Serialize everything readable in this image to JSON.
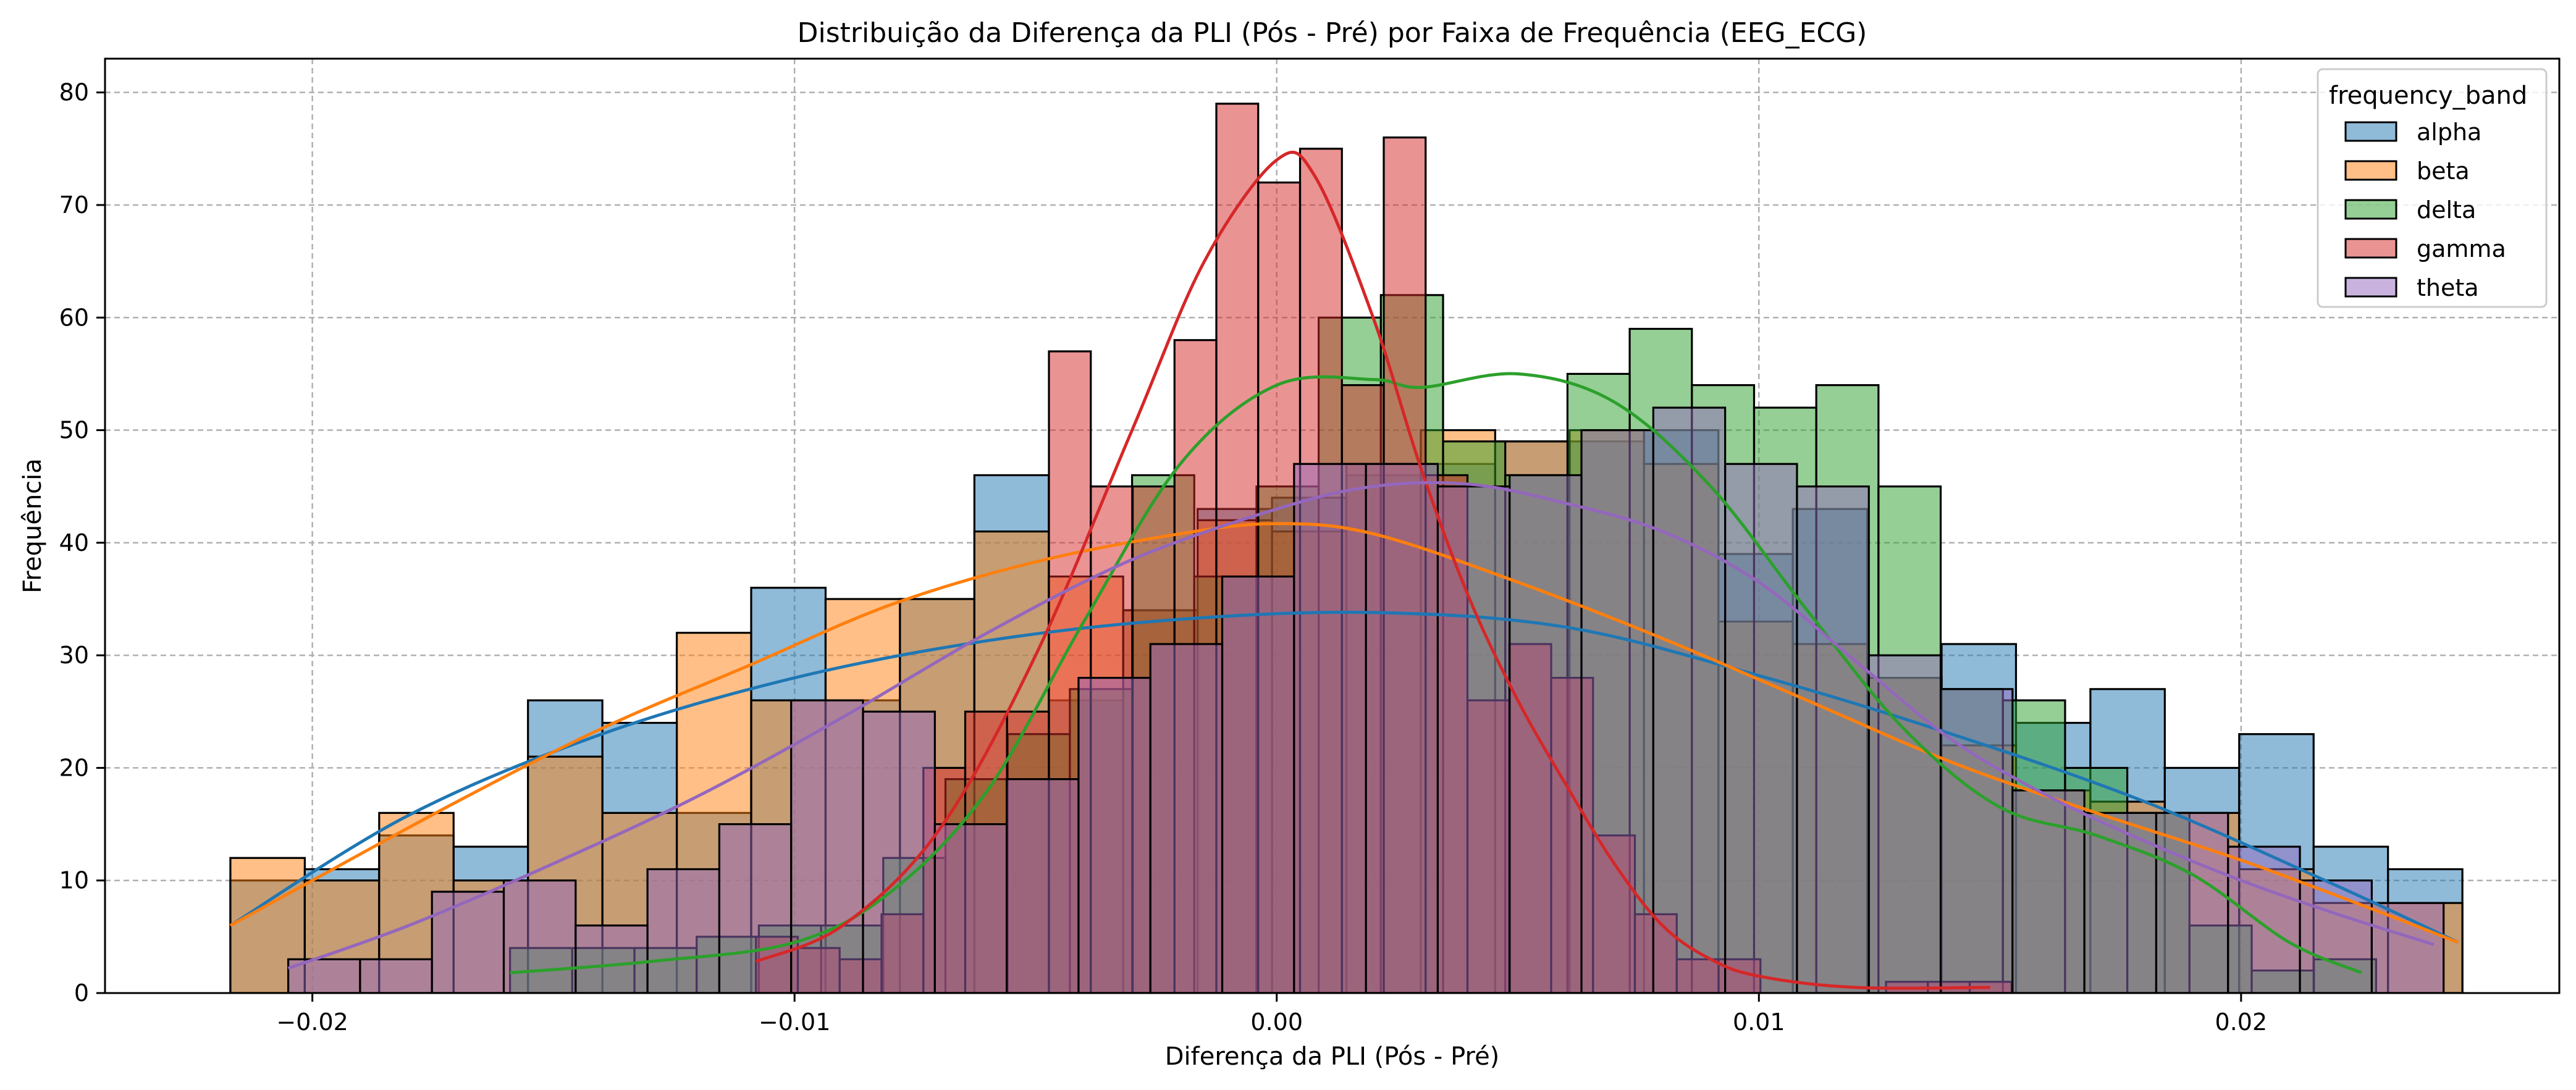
{
  "chart_data": {
    "type": "histogram",
    "title": "Distribuição da Diferença da PLI (Pós - Pré) por Faixa de Frequência (EEG_ECG)",
    "xlabel": "Diferença da PLI (Pós - Pré)",
    "ylabel": "Frequência",
    "xlim": [
      -0.0243,
      0.0266
    ],
    "ylim": [
      0,
      83
    ],
    "xticks": [
      -0.02,
      -0.01,
      0.0,
      0.01,
      0.02
    ],
    "xtick_labels": [
      "−0.02",
      "−0.01",
      "0.00",
      "0.01",
      "0.02"
    ],
    "yticks": [
      0,
      10,
      20,
      30,
      40,
      50,
      60,
      70,
      80
    ],
    "ytick_labels": [
      "0",
      "10",
      "20",
      "30",
      "40",
      "50",
      "60",
      "70",
      "80"
    ],
    "grid": true,
    "legend": {
      "title": "frequency_band",
      "placement": "top-right"
    },
    "series": [
      {
        "name": "alpha",
        "color": "#1f77b4",
        "bins": {
          "start": -0.0217,
          "width": 0.001543,
          "count": 30
        },
        "counts": [
          10,
          11,
          14,
          13,
          26,
          24,
          16,
          36,
          26,
          35,
          46,
          26,
          34,
          43,
          44,
          46,
          47,
          49,
          49,
          50,
          39,
          43,
          28,
          31,
          24,
          27,
          20,
          23,
          13,
          11
        ],
        "kde": [
          [
            -0.0217,
            6.0
          ],
          [
            -0.018,
            15.8
          ],
          [
            -0.014,
            23.0
          ],
          [
            -0.01,
            28.0
          ],
          [
            -0.006,
            31.3
          ],
          [
            -0.002,
            33.2
          ],
          [
            0.002,
            33.8
          ],
          [
            0.006,
            32.5
          ],
          [
            0.01,
            28.2
          ],
          [
            0.014,
            23.0
          ],
          [
            0.018,
            17.0
          ],
          [
            0.022,
            9.5
          ],
          [
            0.0245,
            4.5
          ]
        ]
      },
      {
        "name": "beta",
        "color": "#ff7f0e",
        "bins": {
          "start": -0.0217,
          "width": 0.001543,
          "count": 30
        },
        "counts": [
          12,
          10,
          16,
          10,
          21,
          16,
          32,
          26,
          35,
          35,
          41,
          37,
          34,
          42,
          41,
          47,
          50,
          49,
          50,
          47,
          33,
          31,
          28,
          22,
          18,
          17,
          16,
          11,
          8,
          8
        ],
        "kde": [
          [
            -0.0217,
            6.0
          ],
          [
            -0.02,
            10.0
          ],
          [
            -0.017,
            17.0
          ],
          [
            -0.014,
            23.5
          ],
          [
            -0.011,
            29.0
          ],
          [
            -0.008,
            34.5
          ],
          [
            -0.005,
            38.3
          ],
          [
            -0.002,
            40.8
          ],
          [
            0.0,
            41.7
          ],
          [
            0.002,
            40.8
          ],
          [
            0.005,
            36.5
          ],
          [
            0.008,
            31.5
          ],
          [
            0.011,
            26.0
          ],
          [
            0.014,
            20.5
          ],
          [
            0.017,
            16.0
          ],
          [
            0.02,
            11.8
          ],
          [
            0.023,
            7.0
          ],
          [
            0.0245,
            4.5
          ]
        ]
      },
      {
        "name": "delta",
        "color": "#2ca02c",
        "bins": {
          "start": -0.0159,
          "width": 0.00129,
          "count": 30
        },
        "counts": [
          4,
          4,
          4,
          5,
          6,
          6,
          12,
          19,
          23,
          27,
          46,
          37,
          45,
          60,
          62,
          49,
          46,
          55,
          59,
          54,
          52,
          54,
          45,
          27,
          26,
          20,
          16,
          6,
          2,
          3
        ],
        "kde": [
          [
            -0.0159,
            1.8
          ],
          [
            -0.013,
            2.8
          ],
          [
            -0.01,
            4.5
          ],
          [
            -0.008,
            9.0
          ],
          [
            -0.006,
            18.0
          ],
          [
            -0.004,
            33.0
          ],
          [
            -0.002,
            47.0
          ],
          [
            0.0,
            54.0
          ],
          [
            0.002,
            54.5
          ],
          [
            0.003,
            53.8
          ],
          [
            0.005,
            55.0
          ],
          [
            0.007,
            52.5
          ],
          [
            0.009,
            45.0
          ],
          [
            0.011,
            34.0
          ],
          [
            0.013,
            23.5
          ],
          [
            0.015,
            16.5
          ],
          [
            0.017,
            14.0
          ],
          [
            0.019,
            10.5
          ],
          [
            0.021,
            4.5
          ],
          [
            0.0225,
            1.8
          ]
        ]
      },
      {
        "name": "gamma",
        "color": "#d62728",
        "bins": {
          "start": -0.0108,
          "width": 0.000868,
          "count": 30
        },
        "counts": [
          5,
          4,
          3,
          7,
          20,
          25,
          25,
          57,
          45,
          45,
          58,
          79,
          72,
          75,
          54,
          76,
          46,
          26,
          31,
          28,
          14,
          7,
          3,
          3,
          0,
          0,
          0,
          1,
          1,
          1
        ],
        "kde": [
          [
            -0.0108,
            2.8
          ],
          [
            -0.009,
            6.0
          ],
          [
            -0.007,
            14.5
          ],
          [
            -0.005,
            30.0
          ],
          [
            -0.003,
            50.0
          ],
          [
            -0.0015,
            65.0
          ],
          [
            0.0,
            74.0
          ],
          [
            0.0008,
            72.5
          ],
          [
            0.002,
            60.0
          ],
          [
            0.003,
            46.5
          ],
          [
            0.004,
            35.0
          ],
          [
            0.005,
            26.0
          ],
          [
            0.006,
            18.5
          ],
          [
            0.007,
            11.5
          ],
          [
            0.008,
            6.0
          ],
          [
            0.009,
            3.0
          ],
          [
            0.01,
            1.5
          ],
          [
            0.012,
            0.5
          ],
          [
            0.0148,
            0.5
          ]
        ]
      },
      {
        "name": "theta",
        "color": "#9467bd",
        "bins": {
          "start": -0.0205,
          "width": 0.00149,
          "count": 30
        },
        "counts": [
          3,
          3,
          9,
          10,
          6,
          11,
          15,
          26,
          25,
          15,
          19,
          28,
          31,
          37,
          47,
          47,
          45,
          46,
          50,
          52,
          47,
          45,
          30,
          27,
          18,
          16,
          16,
          13,
          10,
          8
        ],
        "kde": [
          [
            -0.0205,
            2.2
          ],
          [
            -0.018,
            6.0
          ],
          [
            -0.015,
            11.5
          ],
          [
            -0.012,
            17.5
          ],
          [
            -0.009,
            24.5
          ],
          [
            -0.006,
            32.0
          ],
          [
            -0.003,
            38.5
          ],
          [
            0.0,
            43.0
          ],
          [
            0.002,
            45.0
          ],
          [
            0.004,
            45.2
          ],
          [
            0.006,
            43.5
          ],
          [
            0.008,
            41.0
          ],
          [
            0.01,
            36.5
          ],
          [
            0.012,
            29.5
          ],
          [
            0.014,
            22.5
          ],
          [
            0.016,
            17.5
          ],
          [
            0.018,
            13.5
          ],
          [
            0.02,
            10.0
          ],
          [
            0.022,
            7.0
          ],
          [
            0.024,
            4.3
          ]
        ]
      }
    ]
  }
}
